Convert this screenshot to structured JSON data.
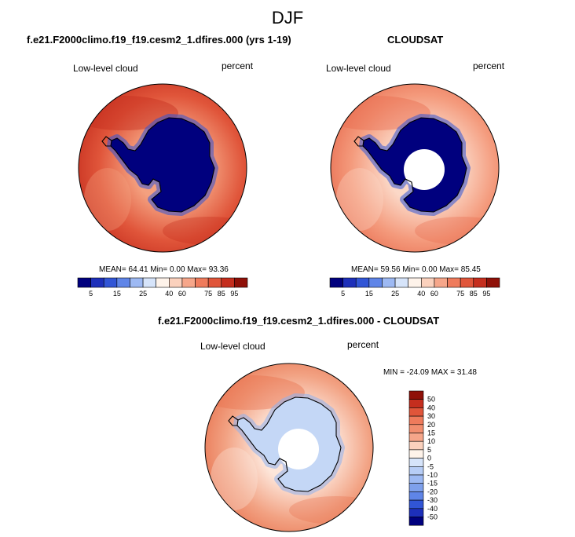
{
  "main_title": "DJF",
  "panels": [
    {
      "title": "f.e21.F2000climo.f19_f19.cesm2_1.dfires.000 (yrs 1-19)",
      "variable": "Low-level cloud",
      "units": "percent",
      "stats": "MEAN=  64.41  Min=   0.00  Max=   93.36",
      "colors": {
        "ocean": "#e0553a",
        "ocean_far": "#c52e1e",
        "ocean_near": "#f4a07f",
        "ice": "#00007e",
        "ice_edge": "#3155d6"
      }
    },
    {
      "title": "CLOUDSAT",
      "variable": "Low-level cloud",
      "units": "percent",
      "stats": "MEAN=  59.56  Min=   0.00  Max=   85.45",
      "colors": {
        "ocean": "#f49a7c",
        "ocean_far": "#e86d50",
        "ocean_near": "#fbd8c7",
        "ice": "#00007e",
        "ice_edge": "#3155d6"
      }
    },
    {
      "title": "f.e21.F2000climo.f19_f19.cesm2_1.dfires.000 - CLOUDSAT",
      "variable": "Low-level cloud",
      "units": "percent",
      "stats": "MIN = -24.09 MAX =  31.48",
      "colors": {
        "ocean": "#f2a283",
        "ocean_far": "#e8734f",
        "ocean_near": "#fde6da",
        "ice": "#c4d7f6",
        "ice_edge": "#8fb1ee"
      }
    }
  ],
  "colorbar_abs": {
    "ticks": [
      "5",
      "15",
      "25",
      "40",
      "60",
      "75",
      "85",
      "95"
    ],
    "colors": [
      "#00007e",
      "#1d2fba",
      "#3155d6",
      "#5f85e8",
      "#9db9f3",
      "#d6e4fa",
      "#fef3ea",
      "#fbd1bd",
      "#f6a68a",
      "#ef7b5c",
      "#e0553a",
      "#c52e1e",
      "#8f1008"
    ]
  },
  "colorbar_diff": {
    "ticks": [
      "50",
      "40",
      "30",
      "20",
      "15",
      "10",
      "5",
      "0",
      "-5",
      "-10",
      "-15",
      "-20",
      "-30",
      "-40",
      "-50"
    ],
    "colors": [
      "#8f1008",
      "#c52e1e",
      "#e0553a",
      "#ef7b5c",
      "#f28e6f",
      "#f6a68a",
      "#fbd1bd",
      "#fef3ea",
      "#d6e4fa",
      "#b7cdf6",
      "#9db9f3",
      "#7ea0ec",
      "#5f85e8",
      "#3155d6",
      "#1d2fba",
      "#00007e"
    ]
  }
}
